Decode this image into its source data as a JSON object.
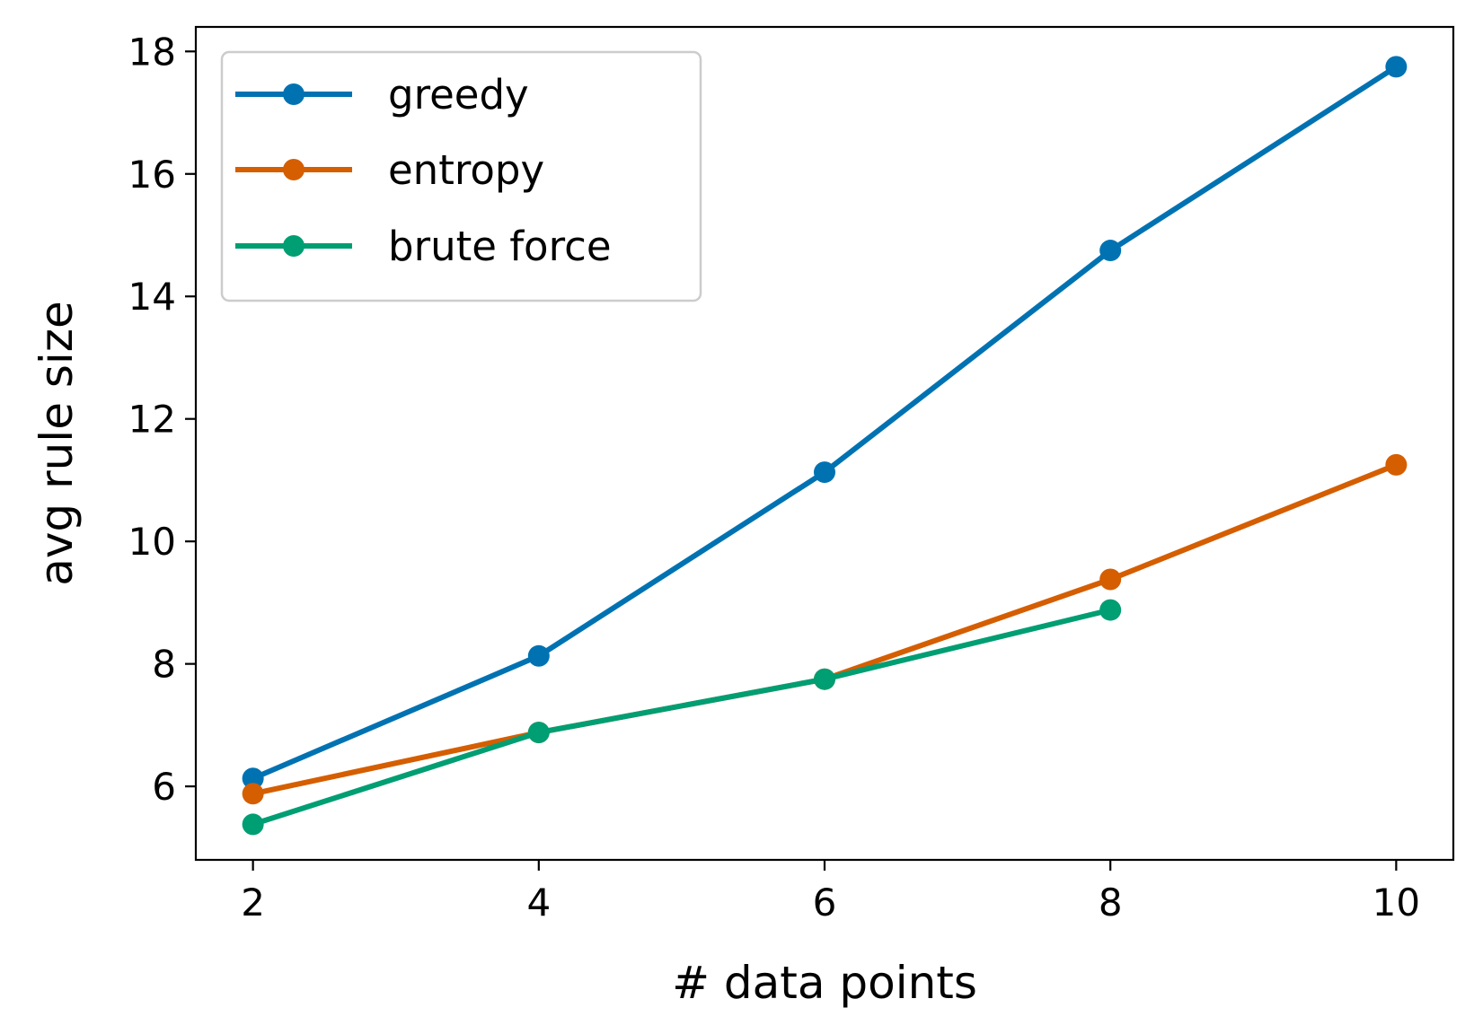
{
  "chart_data": {
    "type": "line",
    "title": "",
    "xlabel": "# data points",
    "ylabel": "avg rule size",
    "x": [
      2,
      4,
      6,
      8,
      10
    ],
    "xlim": [
      1.6,
      10.4
    ],
    "ylim": [
      4.8,
      18.4
    ],
    "xticks": [
      2,
      4,
      6,
      8,
      10
    ],
    "yticks": [
      6,
      8,
      10,
      12,
      14,
      16,
      18
    ],
    "grid": false,
    "legend_position": "top-left",
    "series": [
      {
        "name": "greedy",
        "color": "#0072B2",
        "values": [
          6.13,
          8.13,
          11.13,
          14.75,
          17.75
        ]
      },
      {
        "name": "entropy",
        "color": "#D55E00",
        "values": [
          5.88,
          6.88,
          7.75,
          9.38,
          11.25
        ]
      },
      {
        "name": "brute force",
        "color": "#009E73",
        "values": [
          5.38,
          6.88,
          7.75,
          8.88,
          null
        ]
      }
    ]
  }
}
